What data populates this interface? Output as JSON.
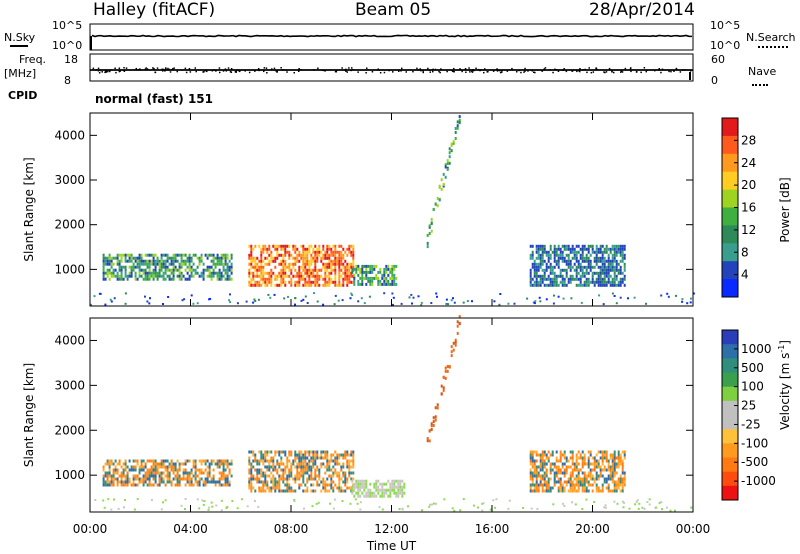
{
  "header": {
    "station": "Halley (fitACF)",
    "beam": "Beam 05",
    "date": "28/Apr/2014"
  },
  "top_panels": {
    "nsky_label": "N.Sky",
    "nsearch_label": "N.Search",
    "freq_label_1": "Freq.",
    "freq_label_2": "[MHz]",
    "nave_label": "Nave",
    "cpid_label": "CPID",
    "cpid_value": "normal (fast) 151",
    "nsky_ticks": [
      "10^5",
      "10^0"
    ],
    "nsearch_ticks": [
      "10^5",
      "10^0"
    ],
    "freq_ticks": [
      "18",
      "8"
    ],
    "nave_ticks": [
      "60",
      "0"
    ]
  },
  "colorbars": {
    "power": {
      "label": "Power [dB]",
      "ticks": [
        "28",
        "24",
        "20",
        "16",
        "12",
        "8",
        "4"
      ],
      "colors": [
        "#e31a1c",
        "#ff5a1e",
        "#ff9a1e",
        "#ffcc22",
        "#9ed420",
        "#3fb040",
        "#2e8a58",
        "#3a9e8e",
        "#2244bb",
        "#0a2aff"
      ]
    },
    "velocity": {
      "label": "Velocity [m s",
      "label_sup": "-1",
      "label_end": "]",
      "ticks": [
        "1000",
        "500",
        "100",
        "25",
        "-25",
        "-100",
        "-500",
        "-1000"
      ],
      "colors": [
        "#2a3eb8",
        "#2d6fa8",
        "#2f8f7c",
        "#3aa04d",
        "#7fd040",
        "#c0c0c0",
        "#c0c0c0",
        "#ffc03a",
        "#ff9a20",
        "#ff7a12",
        "#ff4a10",
        "#ee1111"
      ]
    }
  },
  "chart_data": [
    {
      "type": "heatmap",
      "title": "Power",
      "xlabel": "Time UT",
      "ylabel": "Slant Range [km]",
      "xlim": [
        "00:00",
        "24:00"
      ],
      "ylim": [
        180,
        4500
      ],
      "x_ticks": [
        "00:00",
        "04:00",
        "08:00",
        "12:00",
        "16:00",
        "20:00",
        "00:00"
      ],
      "y_ticks": [
        1000,
        2000,
        3000,
        4000
      ],
      "regions": [
        {
          "t": [
            0.5,
            5.6
          ],
          "r": [
            800,
            1350
          ],
          "value_dB": 10
        },
        {
          "t": [
            6.3,
            10.5
          ],
          "r": [
            650,
            1550
          ],
          "value_dB": 24
        },
        {
          "t": [
            10.4,
            12.2
          ],
          "r": [
            650,
            1100
          ],
          "value_dB": 14
        },
        {
          "t": [
            13.4,
            14.7
          ],
          "r": [
            1700,
            4500
          ],
          "value_dB": 12
        },
        {
          "t": [
            17.5,
            21.3
          ],
          "r": [
            650,
            1550
          ],
          "value_dB": 8
        }
      ]
    },
    {
      "type": "heatmap",
      "title": "Velocity",
      "xlabel": "Time UT",
      "ylabel": "Slant Range [km]",
      "xlim": [
        "00:00",
        "24:00"
      ],
      "ylim": [
        180,
        4500
      ],
      "x_ticks": [
        "00:00",
        "04:00",
        "08:00",
        "12:00",
        "16:00",
        "20:00",
        "00:00"
      ],
      "y_ticks": [
        1000,
        2000,
        3000,
        4000
      ],
      "regions": [
        {
          "t": [
            0.5,
            5.6
          ],
          "r": [
            800,
            1350
          ],
          "value_ms": -150
        },
        {
          "t": [
            6.3,
            10.5
          ],
          "r": [
            650,
            1550
          ],
          "value_ms": -200
        },
        {
          "t": [
            10.4,
            12.5
          ],
          "r": [
            500,
            900
          ],
          "value_ms": 0
        },
        {
          "t": [
            13.4,
            14.7
          ],
          "r": [
            1700,
            4500
          ],
          "value_ms": -300
        },
        {
          "t": [
            17.5,
            21.3
          ],
          "r": [
            650,
            1550
          ],
          "value_ms": -120
        }
      ]
    }
  ]
}
